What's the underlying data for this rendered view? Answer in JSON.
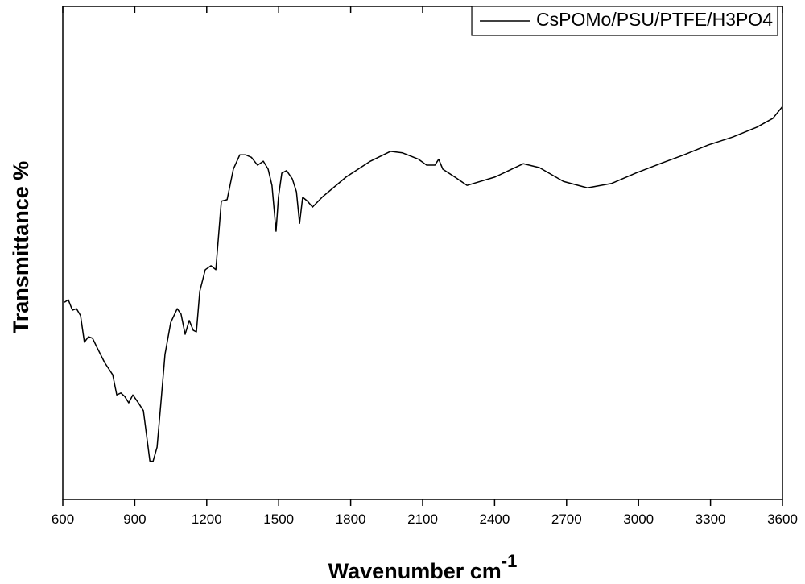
{
  "chart_data": {
    "type": "line",
    "xlabel": "Wavenumber cm",
    "xlabel_superscript": "-1",
    "ylabel": "Transmittance %",
    "x": [
      607,
      623,
      640,
      657,
      674,
      690,
      707,
      724,
      741,
      774,
      808,
      825,
      842,
      858,
      875,
      892,
      915,
      936,
      949,
      963,
      976,
      993,
      1009,
      1026,
      1050,
      1077,
      1093,
      1110,
      1127,
      1144,
      1157,
      1171,
      1194,
      1218,
      1238,
      1261,
      1285,
      1311,
      1338,
      1362,
      1386,
      1412,
      1436,
      1456,
      1472,
      1489,
      1499,
      1513,
      1533,
      1557,
      1574,
      1587,
      1600,
      1620,
      1641,
      1681,
      1781,
      1882,
      1966,
      2016,
      2083,
      2117,
      2151,
      2167,
      2184,
      2234,
      2285,
      2402,
      2520,
      2587,
      2687,
      2787,
      2888,
      2989,
      3090,
      3190,
      3291,
      3392,
      3493,
      3560,
      3600
    ],
    "series": [
      {
        "name": "CsPOMo/PSU/PTFE/H3PO4",
        "color": "#000000",
        "values": [
          40.0,
          40.5,
          38.4,
          38.7,
          37.3,
          31.9,
          33.0,
          32.7,
          31.0,
          27.8,
          25.3,
          21.2,
          21.6,
          20.9,
          19.6,
          21.2,
          19.6,
          18.0,
          13.1,
          7.8,
          7.7,
          10.6,
          19.6,
          29.4,
          35.9,
          38.7,
          37.6,
          33.5,
          36.3,
          34.3,
          34.0,
          42.2,
          46.6,
          47.4,
          46.6,
          60.5,
          60.8,
          67.0,
          69.9,
          69.9,
          69.4,
          67.8,
          68.6,
          67.0,
          63.7,
          54.4,
          61.3,
          66.2,
          66.7,
          65.0,
          62.4,
          56.0,
          61.3,
          60.5,
          59.3,
          61.3,
          65.4,
          68.6,
          70.6,
          70.3,
          69.0,
          67.8,
          67.8,
          69.0,
          67.0,
          65.4,
          63.7,
          65.4,
          68.1,
          67.3,
          64.5,
          63.2,
          64.1,
          66.2,
          68.1,
          69.9,
          71.9,
          73.5,
          75.5,
          77.3,
          79.7
        ]
      }
    ],
    "xlim": [
      600,
      3600
    ],
    "xticks": [
      600,
      900,
      1200,
      1500,
      1800,
      2100,
      2400,
      2700,
      3000,
      3300,
      3600
    ],
    "ylim": [
      0,
      100
    ],
    "legend": "upper right"
  }
}
